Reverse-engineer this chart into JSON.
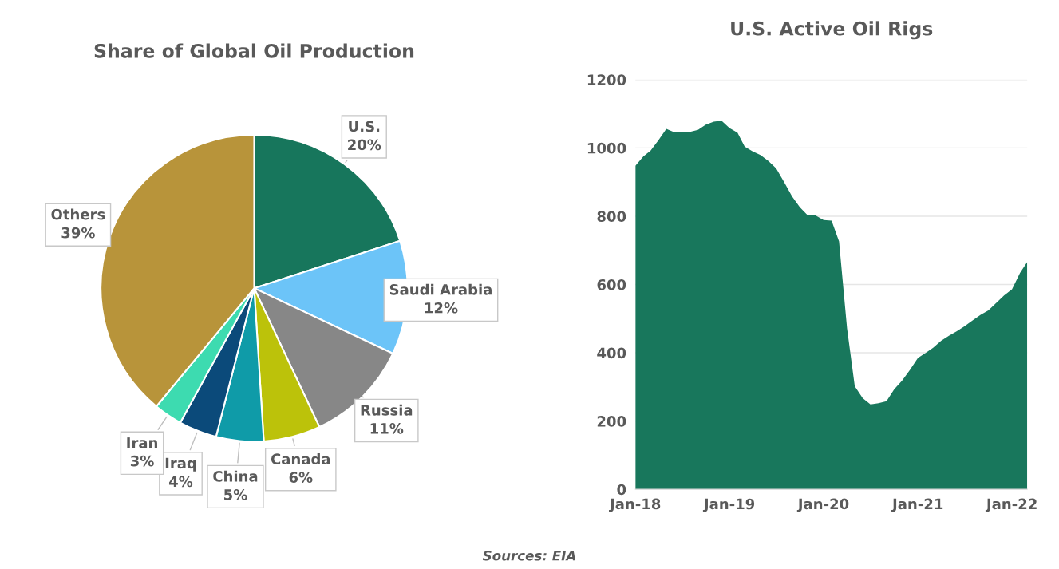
{
  "chart_data": [
    {
      "type": "pie",
      "title": "Share of Global Oil Production",
      "categories": [
        "U.S.",
        "Saudi Arabia",
        "Russia",
        "Canada",
        "China",
        "Iraq",
        "Iran",
        "Others"
      ],
      "values": [
        20,
        12,
        11,
        6,
        5,
        4,
        3,
        39
      ],
      "value_labels": [
        "20%",
        "12%",
        "11%",
        "6%",
        "5%",
        "4%",
        "3%",
        "39%"
      ],
      "colors": [
        "#17765c",
        "#6cc4f8",
        "#878787",
        "#bcc20a",
        "#0f9ba8",
        "#0b4a7a",
        "#3ddbb0",
        "#b8943a"
      ],
      "annotations": [
        "Sources: EIA"
      ]
    },
    {
      "type": "area",
      "title": "U.S. Active Oil Rigs",
      "x": [
        "2018-01",
        "2018-02",
        "2018-03",
        "2018-04",
        "2018-05",
        "2018-06",
        "2018-08",
        "2018-09",
        "2018-10",
        "2018-11",
        "2018-12",
        "2019-01",
        "2019-02",
        "2019-03",
        "2019-04",
        "2019-05",
        "2019-06",
        "2019-07",
        "2019-08",
        "2019-09",
        "2019-10",
        "2019-11",
        "2019-12",
        "2020-01",
        "2020-02",
        "2020-03",
        "2020-04",
        "2020-05",
        "2020-06",
        "2020-07",
        "2020-08",
        "2020-09",
        "2020-10",
        "2020-11",
        "2020-12",
        "2021-01",
        "2021-02",
        "2021-03",
        "2021-04",
        "2021-05",
        "2021-06",
        "2021-07",
        "2021-08",
        "2021-09",
        "2021-10",
        "2021-11",
        "2021-12",
        "2022-01",
        "2022-02",
        "2022-03"
      ],
      "series": [
        {
          "color": "#18775c",
          "values": [
            948,
            975,
            992,
            1023,
            1056,
            1046,
            1047,
            1053,
            1068,
            1077,
            1080,
            1058,
            1045,
            1004,
            990,
            979,
            962,
            940,
            900,
            858,
            826,
            802,
            802,
            789,
            787,
            726,
            472,
            302,
            267,
            249,
            252,
            258,
            293,
            319,
            350,
            385,
            400,
            415,
            435,
            450,
            463,
            478,
            495,
            511,
            524,
            546,
            568,
            586,
            634,
            666
          ]
        }
      ],
      "xlim": [
        "2018-01",
        "2022-03"
      ],
      "xticks": [
        {
          "value": "2018-01",
          "label": "Jan-18"
        },
        {
          "value": "2019-01",
          "label": "Jan-19"
        },
        {
          "value": "2020-01",
          "label": "Jan-20"
        },
        {
          "value": "2021-01",
          "label": "Jan-21"
        },
        {
          "value": "2022-01",
          "label": "Jan-22"
        }
      ],
      "ylim": [
        0,
        1200
      ],
      "yticks": [
        0,
        200,
        400,
        600,
        800,
        1000,
        1200
      ],
      "grid": "y"
    }
  ]
}
